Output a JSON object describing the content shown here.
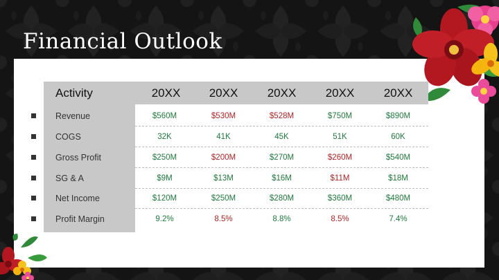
{
  "title": "Financial Outlook",
  "table": {
    "header": {
      "activity": "Activity",
      "years": [
        "20XX",
        "20XX",
        "20XX",
        "20XX",
        "20XX"
      ]
    },
    "rows": [
      {
        "label": "Revenue",
        "values": [
          "$560M",
          "$530M",
          "$528M",
          "$750M",
          "$890M"
        ],
        "tones": [
          "pos",
          "neg",
          "neg",
          "pos",
          "pos"
        ]
      },
      {
        "label": "COGS",
        "values": [
          "32K",
          "41K",
          "45K",
          "51K",
          "60K"
        ],
        "tones": [
          "pos",
          "pos",
          "pos",
          "pos",
          "pos"
        ]
      },
      {
        "label": "Gross Profit",
        "values": [
          "$250M",
          "$200M",
          "$270M",
          "$260M",
          "$540M"
        ],
        "tones": [
          "pos",
          "neg",
          "pos",
          "neg",
          "pos"
        ]
      },
      {
        "label": "SG & A",
        "values": [
          "$9M",
          "$13M",
          "$16M",
          "$11M",
          "$18M"
        ],
        "tones": [
          "pos",
          "pos",
          "pos",
          "neg",
          "pos"
        ]
      },
      {
        "label": "Net Income",
        "values": [
          "$120M",
          "$250M",
          "$280M",
          "$360M",
          "$480M"
        ],
        "tones": [
          "pos",
          "pos",
          "pos",
          "pos",
          "pos"
        ]
      },
      {
        "label": "Profit Margin",
        "values": [
          "9.2%",
          "8.5%",
          "8.8%",
          "8.5%",
          "7.4%"
        ],
        "tones": [
          "pos",
          "neg",
          "pos",
          "neg",
          "pos"
        ]
      }
    ]
  },
  "colors": {
    "positive": "#1e7a3c",
    "negative": "#b02323",
    "header_fill": "#c8c8c8",
    "background": "#141414"
  },
  "decorations": [
    "flower-cluster-top-right",
    "flower-cluster-bottom-left",
    "damask-pattern"
  ]
}
